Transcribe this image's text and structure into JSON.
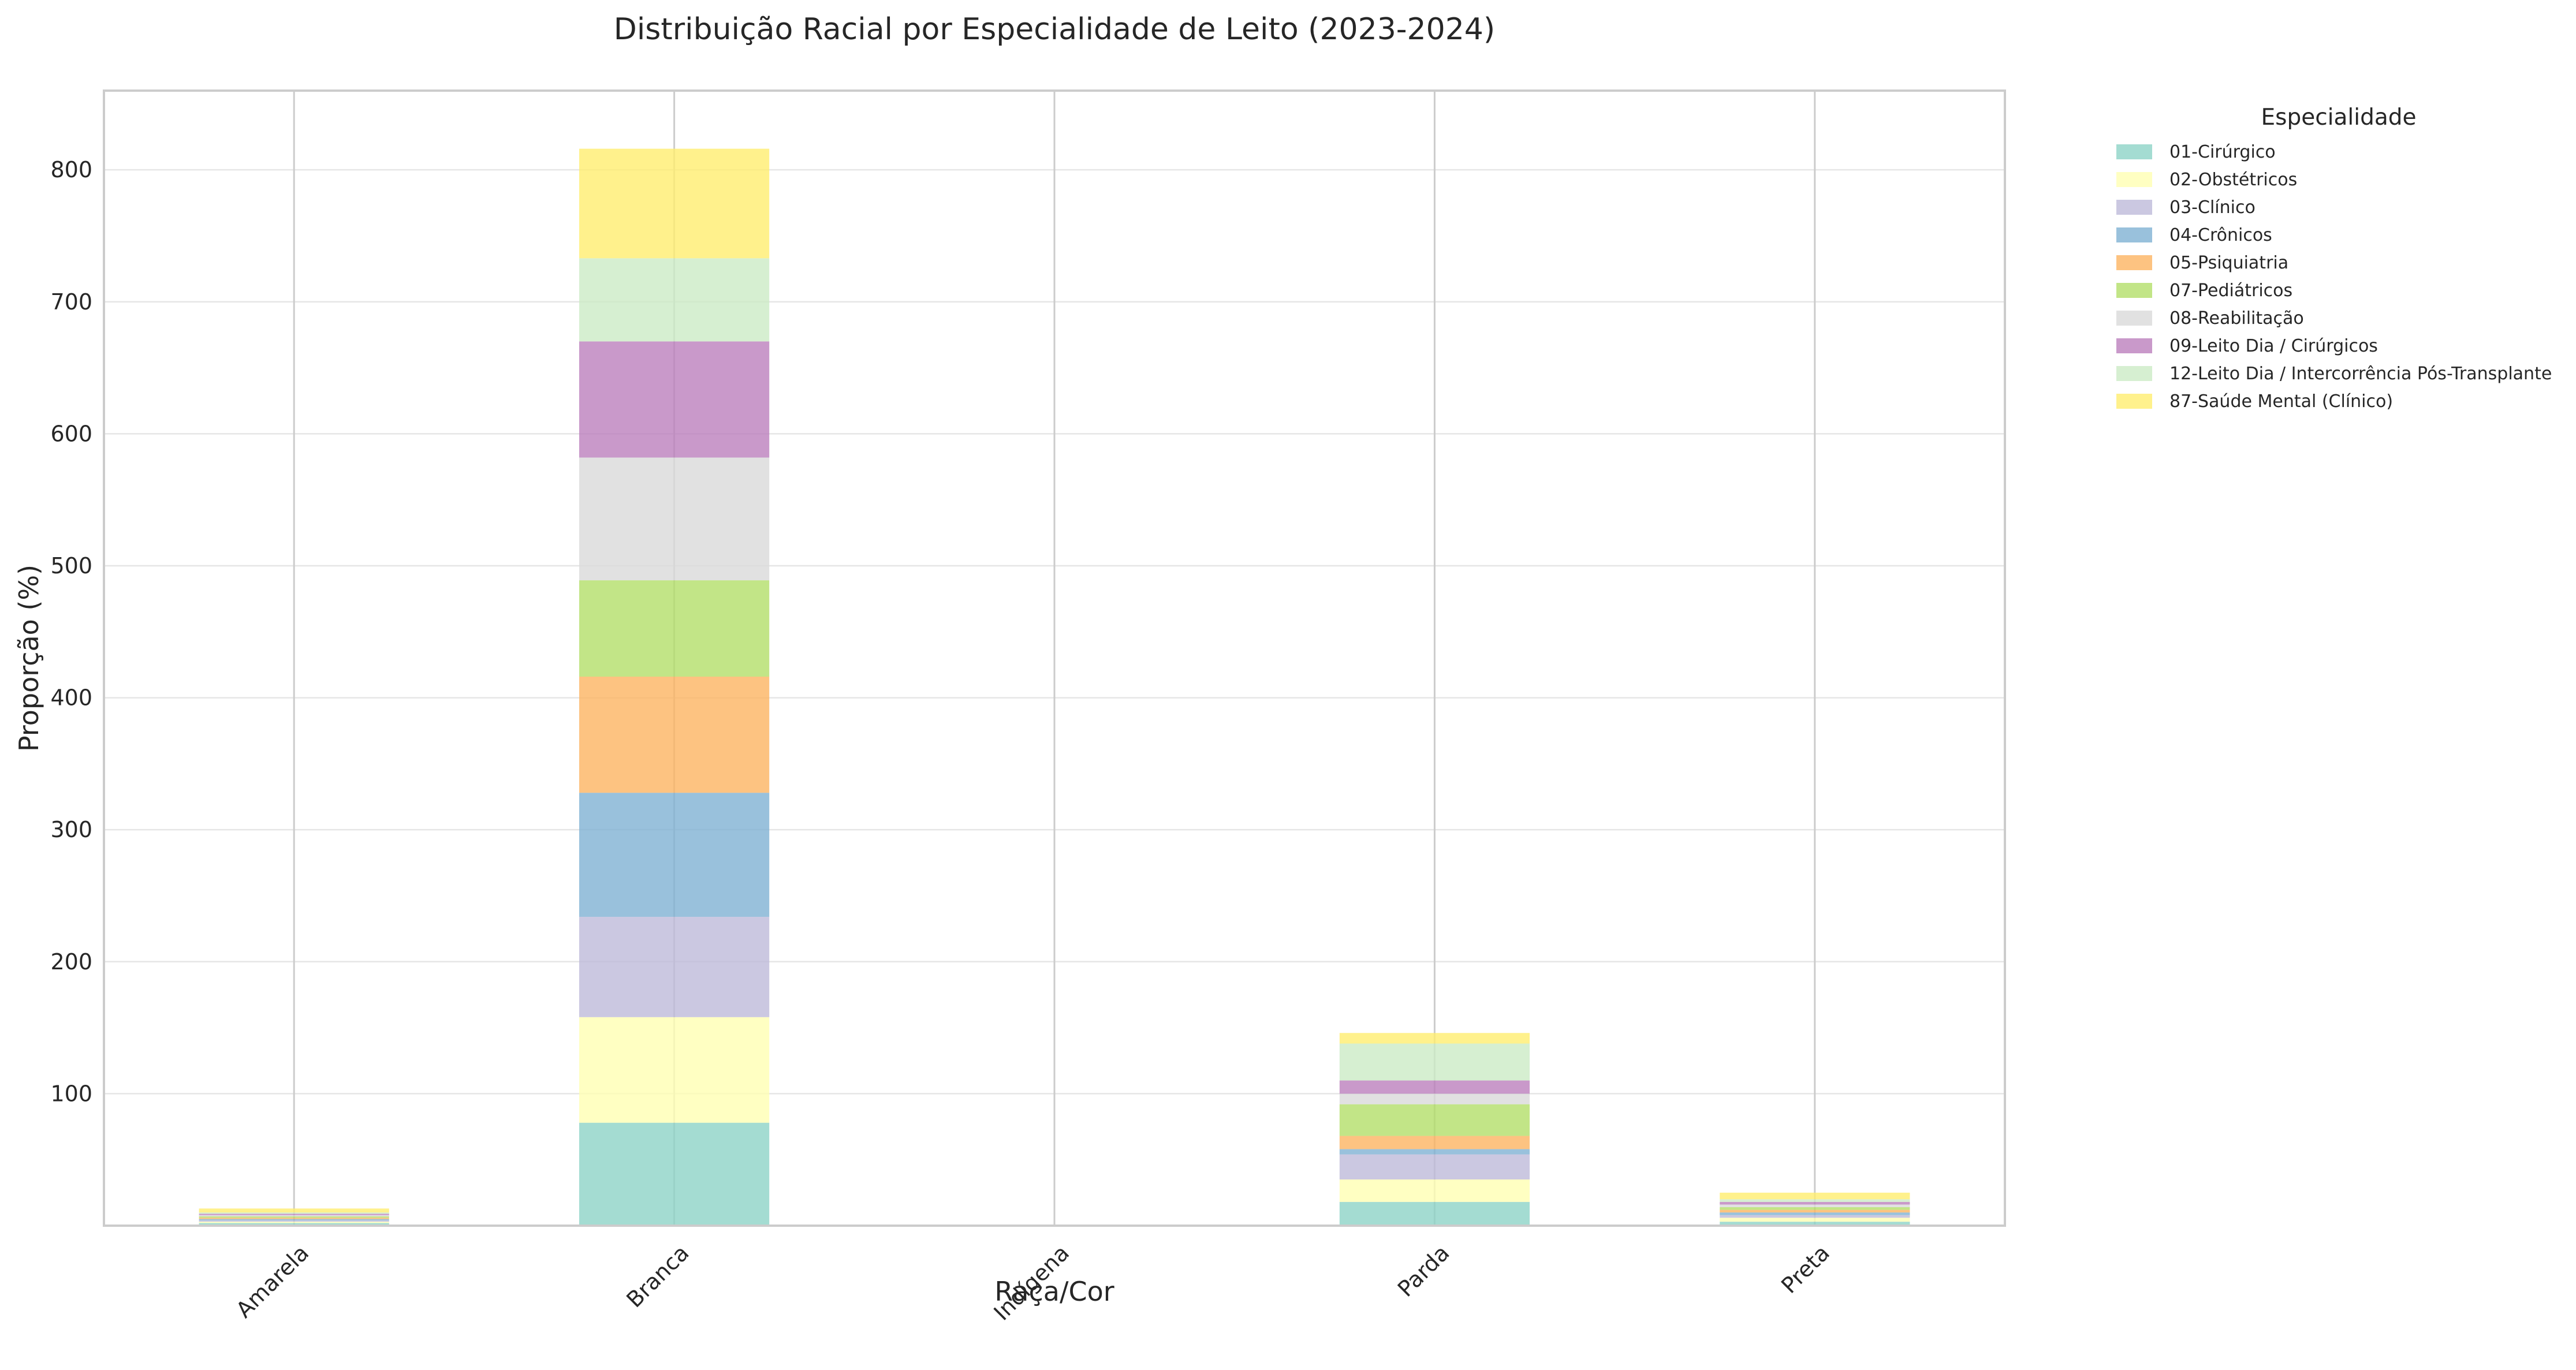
{
  "chart_data": {
    "type": "bar",
    "stacked": true,
    "title": "Distribuição Racial por Especialidade de Leito (2023-2024)",
    "xlabel": "Raça/Cor",
    "ylabel": "Proporção (%)",
    "categories": [
      "Amarela",
      "Branca",
      "Indígena",
      "Parda",
      "Preta"
    ],
    "ylim": [
      0,
      860
    ],
    "yticks": [
      100,
      200,
      300,
      400,
      500,
      600,
      700,
      800
    ],
    "grid": true,
    "legend": {
      "title": "Especialidade",
      "placement": "outside-top-right"
    },
    "series": [
      {
        "name": "01-Cirúrgico",
        "color": "#8dd3c7",
        "values": [
          2,
          78,
          0,
          18,
          3
        ]
      },
      {
        "name": "02-Obstétricos",
        "color": "#ffffb3",
        "values": [
          1,
          80,
          0,
          17,
          3
        ]
      },
      {
        "name": "03-Clínico",
        "color": "#bebada",
        "values": [
          1,
          76,
          0,
          19,
          2
        ]
      },
      {
        "name": "04-Crônicos",
        "color": "#80b1d3",
        "values": [
          1,
          94,
          0,
          4,
          2
        ]
      },
      {
        "name": "05-Psiquiatria",
        "color": "#fdb462",
        "values": [
          1,
          88,
          0,
          10,
          2
        ]
      },
      {
        "name": "07-Pediátricos",
        "color": "#b3de69",
        "values": [
          1,
          73,
          0,
          24,
          2
        ]
      },
      {
        "name": "08-Reabilitação",
        "color": "#d9d9d9",
        "values": [
          1,
          93,
          0,
          8,
          2
        ]
      },
      {
        "name": "09-Leito Dia / Cirúrgicos",
        "color": "#bc80bd",
        "values": [
          1,
          88,
          0,
          10,
          2
        ]
      },
      {
        "name": "12-Leito Dia / Intercorrência Pós-Transplante",
        "color": "#ccebc5",
        "values": [
          1,
          63,
          0,
          28,
          2
        ]
      },
      {
        "name": "87-Saúde Mental (Clínico)",
        "color": "#ffed6f",
        "values": [
          3,
          83,
          0,
          8,
          5
        ]
      }
    ]
  }
}
